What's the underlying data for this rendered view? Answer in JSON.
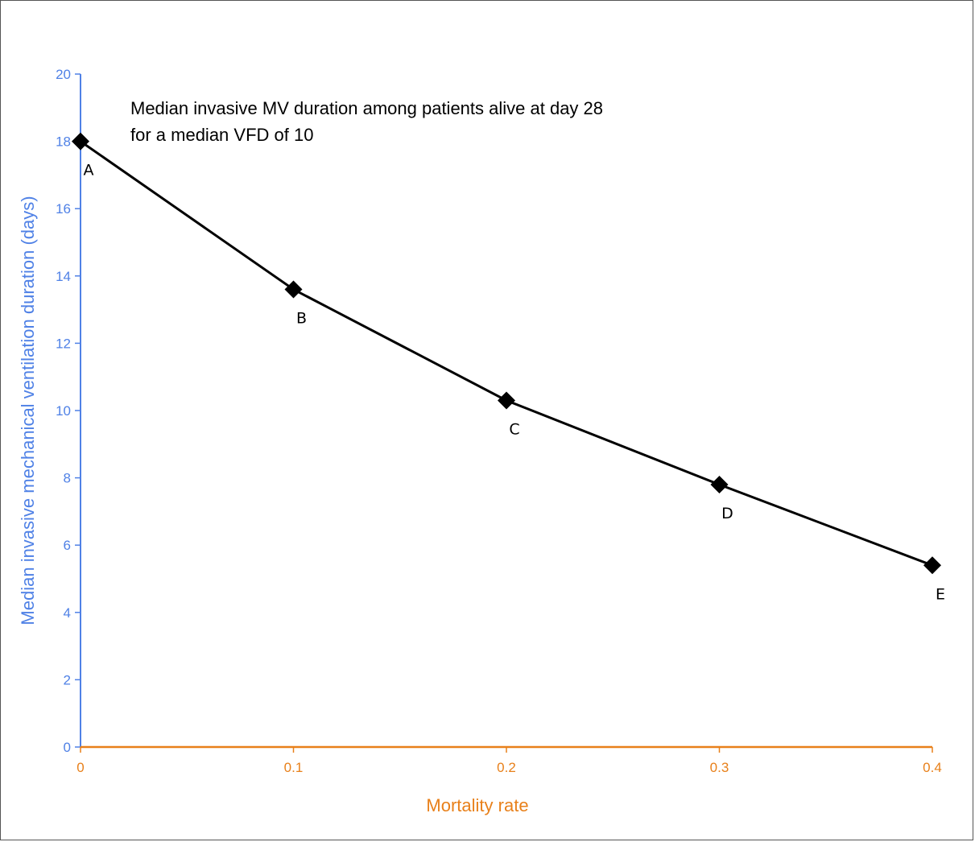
{
  "chart_data": {
    "type": "line",
    "title": "",
    "xlabel": "Mortality rate",
    "ylabel": "Median invasive mechanical ventilation duration (days)",
    "xlim": [
      0,
      0.4
    ],
    "ylim": [
      0,
      20
    ],
    "x_ticks": [
      "0",
      "0.1",
      "0.2",
      "0.3",
      "0.4"
    ],
    "y_ticks": [
      "0",
      "2",
      "4",
      "6",
      "8",
      "10",
      "12",
      "14",
      "16",
      "18",
      "20"
    ],
    "grid": false,
    "legend": "none",
    "series": [
      {
        "x": [
          0,
          0.1,
          0.2,
          0.3,
          0.4
        ],
        "values": [
          18,
          13.6,
          10.3,
          7.8,
          5.4
        ],
        "point_labels": [
          "A",
          "B",
          "C",
          "D",
          "E"
        ],
        "marker": "diamond",
        "color": "#000000"
      }
    ],
    "annotation_lines": [
      "Median invasive MV duration among patients alive at day 28",
      "for a median VFD of 10"
    ],
    "colors": {
      "y_axis": "#4f81e6",
      "x_axis": "#e8801a",
      "line": "#000000"
    }
  }
}
